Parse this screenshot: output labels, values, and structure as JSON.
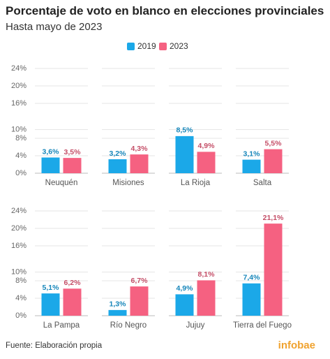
{
  "chart_data": {
    "type": "bar",
    "title": "Porcentaje de voto en blanco en elecciones provinciales",
    "subtitle": "Hasta mayo de 2023",
    "categories": [
      "Neuquén",
      "Misiones",
      "La Rioja",
      "Salta",
      "La Pampa",
      "Río Negro",
      "Jujuy",
      "Tierra del Fuego"
    ],
    "series": [
      {
        "name": "2019",
        "color": "#1ba8e8",
        "values": [
          3.6,
          3.2,
          8.5,
          3.1,
          5.1,
          1.3,
          4.9,
          7.4
        ],
        "value_labels": [
          "3,6%",
          "3,2%",
          "8,5%",
          "3,1%",
          "5,1%",
          "1,3%",
          "4,9%",
          "7,4%"
        ]
      },
      {
        "name": "2023",
        "color": "#f56181",
        "values": [
          3.5,
          4.3,
          4.9,
          5.5,
          6.2,
          6.7,
          8.1,
          21.1
        ],
        "value_labels": [
          "3,5%",
          "4,3%",
          "4,9%",
          "5,5%",
          "6,2%",
          "6,7%",
          "8,1%",
          "21,1%"
        ]
      }
    ],
    "ylim": [
      0,
      24
    ],
    "yticks": [
      {
        "value": 0,
        "label": "0%"
      },
      {
        "value": 4,
        "label": "4%"
      },
      {
        "value": 8,
        "label": "8%"
      },
      {
        "value": 10,
        "label": "10%"
      },
      {
        "value": 16,
        "label": "16%"
      },
      {
        "value": 20,
        "label": "20%"
      },
      {
        "value": 24,
        "label": "24%"
      }
    ],
    "grid": true,
    "legend": "top",
    "source": "Fuente: Elaboración propia",
    "logo": "infobae"
  }
}
